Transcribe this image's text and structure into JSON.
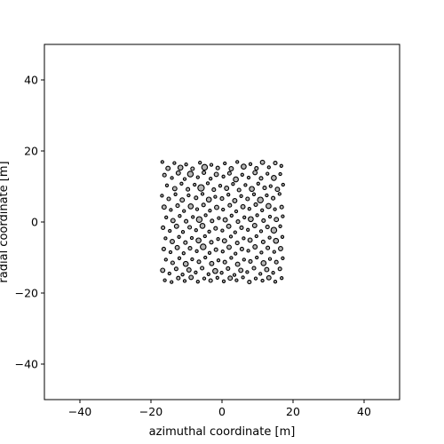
{
  "chart_data": {
    "type": "scatter",
    "title": "",
    "xlabel": "azimuthal coordinate [m]",
    "ylabel": "radial coordinate [m]",
    "xlim": [
      -50,
      50
    ],
    "ylim": [
      -50,
      50
    ],
    "xticks": [
      -40,
      -20,
      0,
      20,
      40
    ],
    "yticks": [
      -40,
      -20,
      0,
      20,
      40
    ],
    "grid": false,
    "legend": "none",
    "marker": {
      "face_color": "#b4b4b4",
      "edge_color": "#000000",
      "shape": "circle"
    },
    "region": {
      "x": [
        -17.5,
        17.5
      ],
      "y": [
        -17,
        17
      ]
    },
    "radius_range_m": [
      0.2,
      0.9
    ],
    "points": [
      [
        -16.8,
        16.9,
        0.4
      ],
      [
        -15.2,
        15.1,
        0.6
      ],
      [
        -13.4,
        16.6,
        0.3
      ],
      [
        -11.7,
        15.3,
        0.7
      ],
      [
        -10.1,
        16.2,
        0.4
      ],
      [
        -8.3,
        15.0,
        0.5
      ],
      [
        -6.2,
        16.7,
        0.3
      ],
      [
        -4.9,
        15.4,
        0.8
      ],
      [
        -3.0,
        16.1,
        0.4
      ],
      [
        -1.2,
        15.2,
        0.5
      ],
      [
        0.8,
        16.5,
        0.3
      ],
      [
        2.6,
        15.0,
        0.6
      ],
      [
        4.3,
        16.9,
        0.4
      ],
      [
        6.1,
        15.6,
        0.7
      ],
      [
        8.0,
        16.3,
        0.3
      ],
      [
        9.7,
        15.1,
        0.5
      ],
      [
        11.4,
        16.8,
        0.6
      ],
      [
        13.2,
        15.4,
        0.4
      ],
      [
        15.0,
        16.6,
        0.5
      ],
      [
        16.7,
        15.8,
        0.3
      ],
      [
        -16.2,
        13.2,
        0.5
      ],
      [
        -14.1,
        12.4,
        0.3
      ],
      [
        -12.3,
        13.8,
        0.6
      ],
      [
        -10.5,
        12.1,
        0.4
      ],
      [
        -8.9,
        13.5,
        0.8
      ],
      [
        -6.8,
        12.6,
        0.3
      ],
      [
        -5.1,
        13.9,
        0.5
      ],
      [
        -3.2,
        12.2,
        0.4
      ],
      [
        -1.6,
        13.4,
        0.6
      ],
      [
        0.4,
        12.8,
        0.3
      ],
      [
        2.1,
        13.7,
        0.5
      ],
      [
        3.9,
        12.0,
        0.7
      ],
      [
        5.7,
        13.3,
        0.4
      ],
      [
        7.5,
        12.5,
        0.3
      ],
      [
        9.3,
        13.9,
        0.6
      ],
      [
        11.0,
        12.3,
        0.5
      ],
      [
        12.8,
        13.6,
        0.4
      ],
      [
        14.6,
        12.4,
        0.7
      ],
      [
        16.4,
        13.5,
        0.3
      ],
      [
        -15.5,
        10.3,
        0.4
      ],
      [
        -13.3,
        9.4,
        0.6
      ],
      [
        -11.4,
        10.8,
        0.3
      ],
      [
        -9.6,
        9.2,
        0.5
      ],
      [
        -7.7,
        10.5,
        0.4
      ],
      [
        -5.9,
        9.6,
        0.9
      ],
      [
        -4.0,
        10.9,
        0.3
      ],
      [
        -2.3,
        9.1,
        0.5
      ],
      [
        -0.5,
        10.2,
        0.4
      ],
      [
        1.3,
        9.5,
        0.6
      ],
      [
        3.1,
        10.7,
        0.3
      ],
      [
        4.8,
        9.0,
        0.5
      ],
      [
        6.6,
        10.4,
        0.4
      ],
      [
        8.4,
        9.3,
        0.7
      ],
      [
        10.2,
        10.8,
        0.3
      ],
      [
        12.0,
        9.6,
        0.5
      ],
      [
        13.7,
        10.1,
        0.4
      ],
      [
        15.6,
        9.2,
        0.6
      ],
      [
        17.2,
        10.5,
        0.3
      ],
      [
        -16.9,
        7.4,
        0.3
      ],
      [
        -15.0,
        6.5,
        0.5
      ],
      [
        -13.1,
        7.8,
        0.4
      ],
      [
        -11.2,
        6.2,
        0.6
      ],
      [
        -9.4,
        7.5,
        0.3
      ],
      [
        -7.3,
        6.8,
        0.5
      ],
      [
        -5.5,
        7.9,
        0.4
      ],
      [
        -3.7,
        6.3,
        0.7
      ],
      [
        -1.9,
        7.1,
        0.3
      ],
      [
        0.0,
        6.6,
        0.5
      ],
      [
        1.8,
        7.7,
        0.4
      ],
      [
        3.6,
        6.0,
        0.6
      ],
      [
        5.4,
        7.3,
        0.3
      ],
      [
        7.2,
        6.5,
        0.5
      ],
      [
        9.0,
        7.8,
        0.4
      ],
      [
        10.8,
        6.2,
        0.8
      ],
      [
        12.6,
        7.5,
        0.3
      ],
      [
        14.4,
        6.7,
        0.5
      ],
      [
        16.2,
        7.9,
        0.4
      ],
      [
        -16.3,
        4.2,
        0.6
      ],
      [
        -14.4,
        3.4,
        0.3
      ],
      [
        -12.5,
        4.6,
        0.5
      ],
      [
        -10.7,
        3.1,
        0.4
      ],
      [
        -8.8,
        4.4,
        0.7
      ],
      [
        -7.0,
        3.6,
        0.3
      ],
      [
        -5.2,
        4.8,
        0.5
      ],
      [
        -3.4,
        3.2,
        0.4
      ],
      [
        -1.5,
        4.1,
        0.6
      ],
      [
        0.3,
        3.5,
        0.3
      ],
      [
        2.2,
        4.7,
        0.5
      ],
      [
        4.0,
        3.0,
        0.4
      ],
      [
        5.9,
        4.3,
        0.6
      ],
      [
        7.7,
        3.7,
        0.3
      ],
      [
        9.5,
        4.9,
        0.5
      ],
      [
        11.3,
        3.3,
        0.4
      ],
      [
        13.1,
        4.5,
        0.7
      ],
      [
        14.9,
        3.6,
        0.3
      ],
      [
        16.8,
        4.2,
        0.5
      ],
      [
        -15.7,
        1.3,
        0.4
      ],
      [
        -13.8,
        0.4,
        0.6
      ],
      [
        -11.9,
        1.7,
        0.3
      ],
      [
        -10.1,
        0.2,
        0.5
      ],
      [
        -8.2,
        1.4,
        0.4
      ],
      [
        -6.4,
        0.7,
        0.8
      ],
      [
        -4.6,
        1.9,
        0.3
      ],
      [
        -2.8,
        0.3,
        0.5
      ],
      [
        -0.9,
        1.1,
        0.4
      ],
      [
        0.9,
        0.6,
        0.6
      ],
      [
        2.7,
        1.8,
        0.3
      ],
      [
        4.5,
        0.1,
        0.5
      ],
      [
        6.3,
        1.3,
        0.4
      ],
      [
        8.1,
        0.8,
        0.7
      ],
      [
        9.9,
        1.9,
        0.3
      ],
      [
        11.7,
        0.4,
        0.5
      ],
      [
        13.5,
        1.5,
        0.4
      ],
      [
        15.3,
        0.7,
        0.6
      ],
      [
        17.1,
        1.6,
        0.3
      ],
      [
        -16.6,
        -1.6,
        0.5
      ],
      [
        -14.7,
        -2.5,
        0.3
      ],
      [
        -12.8,
        -1.2,
        0.6
      ],
      [
        -11.0,
        -2.8,
        0.4
      ],
      [
        -9.1,
        -1.5,
        0.5
      ],
      [
        -7.3,
        -2.3,
        0.3
      ],
      [
        -5.5,
        -1.1,
        0.7
      ],
      [
        -3.6,
        -2.7,
        0.4
      ],
      [
        -1.8,
        -1.8,
        0.5
      ],
      [
        0.1,
        -2.4,
        0.3
      ],
      [
        1.9,
        -1.2,
        0.6
      ],
      [
        3.7,
        -2.9,
        0.4
      ],
      [
        5.5,
        -1.6,
        0.5
      ],
      [
        7.3,
        -2.2,
        0.3
      ],
      [
        9.2,
        -1.0,
        0.6
      ],
      [
        11.0,
        -2.6,
        0.4
      ],
      [
        12.8,
        -1.4,
        0.5
      ],
      [
        14.6,
        -2.3,
        0.8
      ],
      [
        16.4,
        -1.2,
        0.3
      ],
      [
        -15.9,
        -4.6,
        0.4
      ],
      [
        -14.0,
        -5.5,
        0.6
      ],
      [
        -12.1,
        -4.2,
        0.3
      ],
      [
        -10.3,
        -5.8,
        0.5
      ],
      [
        -8.5,
        -4.5,
        0.4
      ],
      [
        -6.6,
        -5.2,
        0.7
      ],
      [
        -4.8,
        -4.0,
        0.3
      ],
      [
        -3.0,
        -5.7,
        0.5
      ],
      [
        -1.1,
        -4.8,
        0.4
      ],
      [
        0.7,
        -5.3,
        0.6
      ],
      [
        2.5,
        -4.1,
        0.3
      ],
      [
        4.3,
        -5.9,
        0.5
      ],
      [
        6.1,
        -4.6,
        0.4
      ],
      [
        7.9,
        -5.1,
        0.6
      ],
      [
        9.7,
        -4.0,
        0.3
      ],
      [
        11.6,
        -5.6,
        0.5
      ],
      [
        13.4,
        -4.4,
        0.4
      ],
      [
        15.2,
        -5.3,
        0.7
      ],
      [
        17.0,
        -4.2,
        0.3
      ],
      [
        -16.4,
        -7.6,
        0.5
      ],
      [
        -14.5,
        -8.5,
        0.4
      ],
      [
        -12.6,
        -7.2,
        0.6
      ],
      [
        -10.8,
        -8.8,
        0.3
      ],
      [
        -9.0,
        -7.4,
        0.5
      ],
      [
        -7.1,
        -8.2,
        0.4
      ],
      [
        -5.3,
        -7.0,
        0.8
      ],
      [
        -3.5,
        -8.7,
        0.3
      ],
      [
        -1.7,
        -7.8,
        0.5
      ],
      [
        0.2,
        -8.3,
        0.4
      ],
      [
        2.0,
        -7.1,
        0.6
      ],
      [
        3.8,
        -8.9,
        0.3
      ],
      [
        5.6,
        -7.6,
        0.5
      ],
      [
        7.4,
        -8.1,
        0.4
      ],
      [
        9.3,
        -7.0,
        0.6
      ],
      [
        11.1,
        -8.6,
        0.3
      ],
      [
        12.9,
        -7.3,
        0.5
      ],
      [
        14.7,
        -8.4,
        0.4
      ],
      [
        16.5,
        -7.5,
        0.6
      ],
      [
        -15.8,
        -10.6,
        0.3
      ],
      [
        -13.9,
        -11.5,
        0.5
      ],
      [
        -12.0,
        -10.2,
        0.4
      ],
      [
        -10.2,
        -11.8,
        0.7
      ],
      [
        -8.4,
        -10.5,
        0.3
      ],
      [
        -6.5,
        -11.2,
        0.5
      ],
      [
        -4.7,
        -10.0,
        0.4
      ],
      [
        -2.9,
        -11.7,
        0.6
      ],
      [
        -1.0,
        -10.8,
        0.3
      ],
      [
        0.8,
        -11.3,
        0.5
      ],
      [
        2.6,
        -10.1,
        0.4
      ],
      [
        4.4,
        -11.9,
        0.6
      ],
      [
        6.2,
        -10.6,
        0.3
      ],
      [
        8.0,
        -11.1,
        0.5
      ],
      [
        9.8,
        -10.0,
        0.4
      ],
      [
        11.7,
        -11.6,
        0.7
      ],
      [
        13.5,
        -10.4,
        0.3
      ],
      [
        15.3,
        -11.3,
        0.5
      ],
      [
        17.1,
        -10.2,
        0.4
      ],
      [
        -16.7,
        -13.6,
        0.6
      ],
      [
        -14.8,
        -14.5,
        0.3
      ],
      [
        -12.9,
        -13.2,
        0.5
      ],
      [
        -11.1,
        -14.8,
        0.4
      ],
      [
        -9.3,
        -13.5,
        0.6
      ],
      [
        -7.4,
        -14.2,
        0.3
      ],
      [
        -5.6,
        -13.0,
        0.5
      ],
      [
        -3.8,
        -14.7,
        0.4
      ],
      [
        -1.9,
        -13.8,
        0.7
      ],
      [
        -0.1,
        -14.3,
        0.3
      ],
      [
        1.7,
        -13.1,
        0.5
      ],
      [
        3.5,
        -14.9,
        0.4
      ],
      [
        5.3,
        -13.6,
        0.6
      ],
      [
        7.1,
        -14.1,
        0.3
      ],
      [
        9.0,
        -13.0,
        0.5
      ],
      [
        10.8,
        -14.6,
        0.4
      ],
      [
        12.6,
        -13.4,
        0.6
      ],
      [
        14.4,
        -14.3,
        0.3
      ],
      [
        16.3,
        -13.2,
        0.5
      ],
      [
        -16.1,
        -16.4,
        0.4
      ],
      [
        -14.2,
        -16.9,
        0.3
      ],
      [
        -12.3,
        -15.8,
        0.5
      ],
      [
        -10.5,
        -16.6,
        0.3
      ],
      [
        -8.7,
        -15.6,
        0.6
      ],
      [
        -6.8,
        -16.8,
        0.4
      ],
      [
        -5.0,
        -15.9,
        0.3
      ],
      [
        -3.2,
        -16.5,
        0.5
      ],
      [
        -1.3,
        -15.7,
        0.4
      ],
      [
        0.5,
        -16.7,
        0.3
      ],
      [
        2.3,
        -15.8,
        0.6
      ],
      [
        4.1,
        -16.4,
        0.4
      ],
      [
        5.9,
        -15.6,
        0.3
      ],
      [
        7.7,
        -16.9,
        0.5
      ],
      [
        9.5,
        -15.9,
        0.4
      ],
      [
        11.4,
        -16.5,
        0.3
      ],
      [
        13.2,
        -15.7,
        0.6
      ],
      [
        15.0,
        -16.8,
        0.4
      ],
      [
        16.8,
        -15.8,
        0.3
      ]
    ]
  }
}
